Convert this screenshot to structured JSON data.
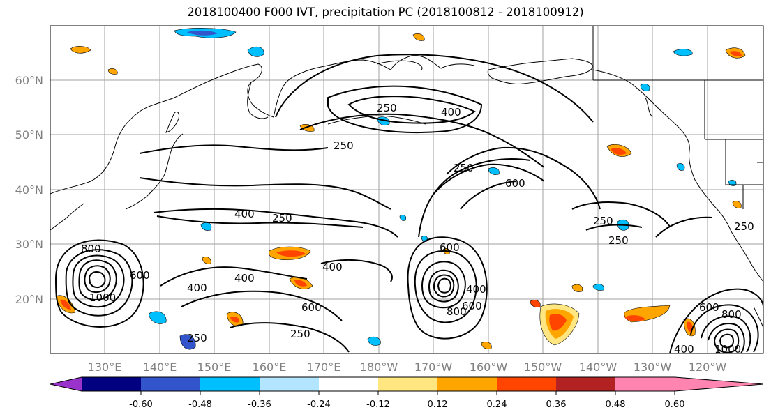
{
  "title": "2018100400 F000 IVT, precipitation PC (2018100812 - 2018100912)",
  "map": {
    "lat_labels": [
      "60°N",
      "50°N",
      "40°N",
      "30°N",
      "20°N"
    ],
    "lon_labels": [
      "130°E",
      "140°E",
      "150°E",
      "160°E",
      "170°E",
      "180°W",
      "170°W",
      "160°W",
      "150°W",
      "140°W",
      "130°W",
      "120°W"
    ],
    "contour_labels": [
      "250",
      "400",
      "250",
      "250",
      "600",
      "400",
      "250",
      "800",
      "1000",
      "600",
      "400",
      "400",
      "400",
      "600",
      "250",
      "250",
      "600",
      "400",
      "800",
      "600",
      "250",
      "250",
      "600",
      "800",
      "1000",
      "400",
      "250"
    ]
  },
  "colorbar": {
    "colors": [
      "#9933cc",
      "#000080",
      "#3355cc",
      "#00bfff",
      "#b3e5ff",
      "#ffffff",
      "#ffe680",
      "#ffa500",
      "#ff4500",
      "#b22222",
      "#ff85b0",
      "#ff85b0"
    ],
    "tick_labels": [
      "-0.60",
      "-0.48",
      "-0.36",
      "-0.24",
      "-0.12",
      "0.12",
      "0.24",
      "0.36",
      "0.48",
      "0.60"
    ]
  }
}
